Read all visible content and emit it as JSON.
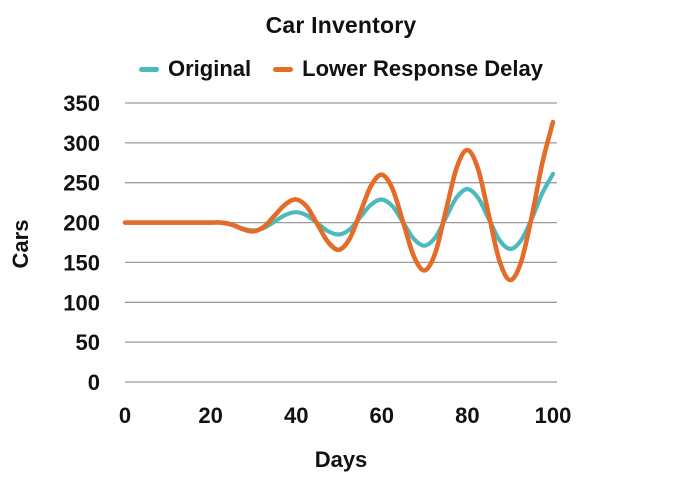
{
  "title": "Car Inventory",
  "colors": {
    "teal": "#4BB9BE",
    "orange": "#E56B28",
    "grid": "#9B9B9B",
    "text": "#111111",
    "background": "#FFFFFF"
  },
  "legend": {
    "position": "top",
    "items": [
      {
        "label": "Original",
        "color": "#4BB9BE"
      },
      {
        "label": "Lower Response Delay",
        "color": "#E56B28"
      }
    ]
  },
  "chart_data": {
    "type": "line",
    "title": "Car Inventory",
    "xlabel": "Days",
    "ylabel": "Cars",
    "xlim": [
      0,
      100
    ],
    "ylim": [
      0,
      350
    ],
    "x_ticks": [
      0,
      20,
      40,
      60,
      80,
      100
    ],
    "y_ticks": [
      0,
      50,
      100,
      150,
      200,
      250,
      300,
      350
    ],
    "grid": "horizontal-only",
    "legend_position": "top-center",
    "x": [
      0,
      2.5,
      5,
      7.5,
      10,
      12.5,
      15,
      17.5,
      20,
      22.5,
      25,
      27.5,
      30,
      32.5,
      35,
      37.5,
      40,
      42.5,
      45,
      47.5,
      50,
      52.5,
      55,
      57.5,
      60,
      62.5,
      65,
      67.5,
      70,
      72.5,
      75,
      77.5,
      80,
      82.5,
      85,
      87.5,
      90,
      92.5,
      95,
      97.5,
      100
    ],
    "series": [
      {
        "name": "Original",
        "color": "#4BB9BE",
        "stroke_width": 4.2,
        "values": [
          200,
          200,
          200,
          200,
          200,
          200,
          200,
          200,
          200,
          200,
          197.5,
          192.5,
          190,
          193.4,
          201.5,
          209.6,
          213,
          208.9,
          199,
          189.1,
          185,
          191.4,
          207,
          222.6,
          229,
          220.5,
          200,
          179.5,
          171,
          181.4,
          206.5,
          231.6,
          242,
          231,
          204.5,
          178,
          167,
          177.4,
          204.4,
          236.8,
          261
        ]
      },
      {
        "name": "Lower Response Delay",
        "color": "#E56B28",
        "stroke_width": 4.6,
        "values": [
          200,
          200,
          200,
          200,
          200,
          200,
          200,
          200,
          200,
          200,
          197.3,
          191.8,
          189,
          194.9,
          209,
          223.1,
          229,
          219.8,
          197.5,
          175.2,
          166,
          179.8,
          213,
          246.2,
          260,
          242.4,
          200,
          157.6,
          140,
          162.1,
          215.5,
          268.9,
          291,
          267.1,
          209.5,
          151.9,
          128,
          149.9,
          206.6,
          274.6,
          326
        ]
      }
    ]
  }
}
